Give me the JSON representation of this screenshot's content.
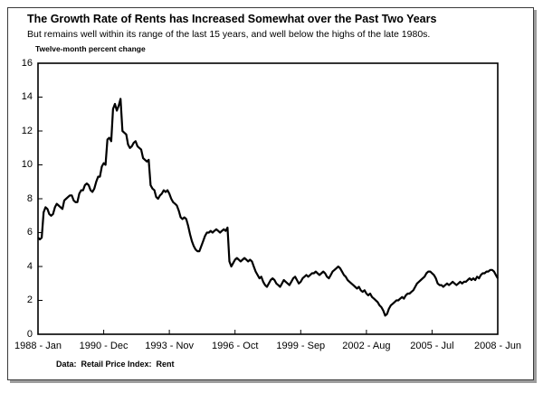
{
  "frame": {
    "title": "The Growth Rate of Rents has Increased Somewhat over the Past Two Years",
    "subtitle": "But remains well within its range of the last 15 years, and well below the highs of the late 1980s.",
    "axis_note": "Twelve-month percent change",
    "source_note": "Data:  Retail Price Index:  Rent"
  },
  "chart_data": {
    "type": "line",
    "title": "The Growth Rate of Rents has Increased Somewhat over the Past Two Years",
    "subtitle": "But remains well within its range of the last 15 years, and well below the highs of the late 1980s.",
    "ylabel": "Twelve-month percent change",
    "xlabel": "",
    "ylim": [
      0,
      16
    ],
    "ytick_step": 2,
    "ytick_labels_top_down": [
      "16",
      "14",
      "12",
      "10",
      "8",
      "6",
      "4",
      "2",
      "0"
    ],
    "xtick_labels": [
      "1988 - Jan",
      "1990 - Dec",
      "1993 - Nov",
      "1996 - Oct",
      "1999 - Sep",
      "2002 - Aug",
      "2005 - Jul",
      "2008 - Jun"
    ],
    "x_start": "1988-Jan",
    "x_end": "2008-Jun",
    "frequency": "monthly",
    "grid": false,
    "legend_position": "none",
    "line_color": "#000000",
    "series": [
      {
        "name": "Retail Price Index: Rent, twelve-month percent change",
        "values": [
          5.7,
          5.6,
          5.7,
          7.2,
          7.5,
          7.4,
          7.1,
          7.0,
          7.1,
          7.5,
          7.7,
          7.6,
          7.5,
          7.4,
          7.9,
          8.0,
          8.1,
          8.2,
          8.2,
          7.9,
          7.8,
          7.8,
          8.3,
          8.5,
          8.5,
          8.8,
          8.9,
          8.8,
          8.5,
          8.4,
          8.6,
          9.0,
          9.3,
          9.3,
          9.9,
          10.1,
          10.0,
          11.5,
          11.6,
          11.4,
          13.3,
          13.6,
          13.2,
          13.5,
          13.9,
          12.0,
          11.9,
          11.8,
          11.2,
          11.0,
          11.1,
          11.3,
          11.4,
          11.1,
          11.0,
          10.9,
          10.4,
          10.3,
          10.2,
          10.3,
          8.8,
          8.6,
          8.5,
          8.1,
          8.0,
          8.2,
          8.3,
          8.5,
          8.4,
          8.5,
          8.3,
          8.0,
          7.8,
          7.7,
          7.6,
          7.3,
          6.9,
          6.8,
          6.9,
          6.8,
          6.4,
          5.9,
          5.5,
          5.2,
          5.0,
          4.9,
          4.9,
          5.2,
          5.5,
          5.8,
          6.0,
          6.0,
          6.1,
          6.0,
          6.1,
          6.2,
          6.1,
          6.0,
          6.1,
          6.2,
          6.1,
          6.3,
          4.3,
          4.0,
          4.2,
          4.4,
          4.5,
          4.4,
          4.3,
          4.4,
          4.5,
          4.4,
          4.3,
          4.4,
          4.3,
          4.0,
          3.7,
          3.5,
          3.3,
          3.4,
          3.1,
          2.9,
          2.8,
          3.0,
          3.2,
          3.3,
          3.2,
          3.0,
          2.9,
          2.8,
          3.0,
          3.2,
          3.1,
          3.0,
          2.9,
          3.1,
          3.3,
          3.4,
          3.2,
          3.0,
          3.1,
          3.3,
          3.4,
          3.5,
          3.4,
          3.5,
          3.6,
          3.6,
          3.7,
          3.6,
          3.5,
          3.6,
          3.7,
          3.6,
          3.4,
          3.3,
          3.5,
          3.7,
          3.8,
          3.9,
          4.0,
          3.9,
          3.7,
          3.5,
          3.4,
          3.2,
          3.1,
          3.0,
          2.9,
          2.8,
          2.7,
          2.8,
          2.6,
          2.5,
          2.6,
          2.4,
          2.3,
          2.4,
          2.2,
          2.1,
          2.0,
          1.9,
          1.7,
          1.6,
          1.4,
          1.1,
          1.2,
          1.5,
          1.7,
          1.8,
          1.9,
          2.0,
          2.0,
          2.1,
          2.2,
          2.1,
          2.3,
          2.4,
          2.4,
          2.5,
          2.6,
          2.8,
          3.0,
          3.1,
          3.2,
          3.3,
          3.4,
          3.6,
          3.7,
          3.7,
          3.6,
          3.5,
          3.3,
          3.0,
          2.9,
          2.9,
          2.8,
          2.9,
          3.0,
          2.9,
          3.0,
          3.1,
          3.0,
          2.9,
          3.0,
          3.1,
          3.0,
          3.1,
          3.1,
          3.2,
          3.3,
          3.2,
          3.3,
          3.2,
          3.4,
          3.3,
          3.5,
          3.6,
          3.6,
          3.7,
          3.7,
          3.8,
          3.8,
          3.7,
          3.5,
          3.3
        ]
      }
    ]
  }
}
